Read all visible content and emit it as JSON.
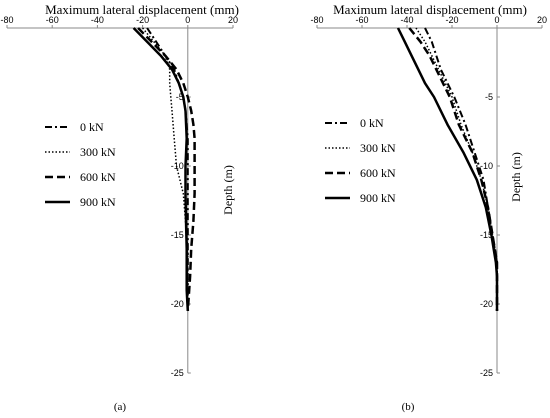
{
  "chart_data": [
    {
      "type": "line",
      "panel": "a",
      "caption": "(a)",
      "title": "Maximum lateral displacement (mm)",
      "xlabel": "Maximum lateral displacement (mm)",
      "ylabel": "Depth (m)",
      "xlim": [
        -80,
        20
      ],
      "ylim": [
        -25,
        0
      ],
      "xticks": [
        -80,
        -60,
        -40,
        -20,
        0,
        20
      ],
      "yticks": [
        -5,
        -10,
        -15,
        -20,
        -25
      ],
      "legend_position": "left-middle",
      "series": [
        {
          "name": "0 kN",
          "style": "dashdot",
          "x": [
            -18,
            -14,
            -10,
            -6,
            -4,
            -2,
            -1,
            0,
            0,
            0,
            0,
            0
          ],
          "y": [
            0,
            -1,
            -2,
            -3,
            -4,
            -5,
            -6,
            -8,
            -10,
            -13,
            -16,
            -20.5
          ]
        },
        {
          "name": "300 kN",
          "style": "dotted",
          "x": [
            -20,
            -15,
            -10,
            -8,
            -8,
            -7.5,
            -7,
            -6,
            -5,
            -3.5,
            -2,
            -1,
            0,
            0,
            0
          ],
          "y": [
            0,
            -1,
            -2,
            -3,
            -4,
            -5,
            -6,
            -8,
            -10,
            -11,
            -12,
            -14,
            -16,
            -18,
            -20.5
          ]
        },
        {
          "name": "600 kN",
          "style": "dashed",
          "x": [
            -22,
            -16,
            -10,
            -5,
            -2,
            0,
            1.5,
            2.5,
            3,
            3,
            3,
            2.5,
            2,
            1.5,
            1,
            0
          ],
          "y": [
            0,
            -1,
            -2,
            -3,
            -4,
            -5,
            -6,
            -7,
            -8,
            -10,
            -12,
            -14,
            -15,
            -16,
            -18,
            -20.5
          ]
        },
        {
          "name": "900 kN",
          "style": "solid",
          "x": [
            -24,
            -18,
            -12,
            -7,
            -4,
            -2,
            -1,
            -0.5,
            -1,
            -1,
            -0.8,
            -0.5,
            -0.5,
            -0.5,
            0
          ],
          "y": [
            0,
            -1,
            -2,
            -3,
            -4,
            -5,
            -6,
            -8,
            -10,
            -12,
            -14,
            -16,
            -17,
            -19,
            -20.5
          ]
        }
      ]
    },
    {
      "type": "line",
      "panel": "b",
      "caption": "(b)",
      "title": "Maximum lateral displacement (mm)",
      "xlabel": "Maximum lateral displacement (mm)",
      "ylabel": "Depth (m)",
      "xlim": [
        -80,
        20
      ],
      "ylim": [
        -25,
        0
      ],
      "xticks": [
        -80,
        -60,
        -40,
        -20,
        0,
        20
      ],
      "yticks": [
        -5,
        -10,
        -15,
        -20,
        -25
      ],
      "legend_position": "left-middle",
      "series": [
        {
          "name": "0 kN",
          "style": "dashdot",
          "x": [
            -32,
            -29,
            -27,
            -25,
            -22,
            -19,
            -14,
            -10,
            -6,
            -4,
            -2,
            0,
            0
          ],
          "y": [
            0,
            -1,
            -2,
            -3,
            -4,
            -5,
            -7,
            -9,
            -11,
            -13,
            -15,
            -17,
            -20.5
          ]
        },
        {
          "name": "300 kN",
          "style": "dotted",
          "x": [
            -36,
            -32,
            -29,
            -26,
            -23,
            -20,
            -16,
            -11,
            -7,
            -4,
            -2,
            0,
            0
          ],
          "y": [
            0,
            -1,
            -2,
            -3,
            -4,
            -5,
            -7,
            -9,
            -11,
            -13,
            -15,
            -17,
            -20.5
          ]
        },
        {
          "name": "600 kN",
          "style": "dashed",
          "x": [
            -39,
            -34,
            -30,
            -27,
            -24,
            -21,
            -17,
            -11,
            -7,
            -4,
            -2,
            0,
            0
          ],
          "y": [
            0,
            -1,
            -2,
            -3,
            -4,
            -5,
            -7,
            -9,
            -11,
            -13,
            -15,
            -17,
            -20.5
          ]
        },
        {
          "name": "900 kN",
          "style": "solid",
          "x": [
            -44,
            -41,
            -38,
            -35,
            -32,
            -28,
            -22,
            -15,
            -9,
            -5,
            -2.5,
            -0.5,
            0,
            0
          ],
          "y": [
            0,
            -1,
            -2,
            -3,
            -4,
            -5,
            -7,
            -9,
            -11,
            -13,
            -15,
            -17,
            -18,
            -20.5
          ]
        }
      ]
    }
  ]
}
